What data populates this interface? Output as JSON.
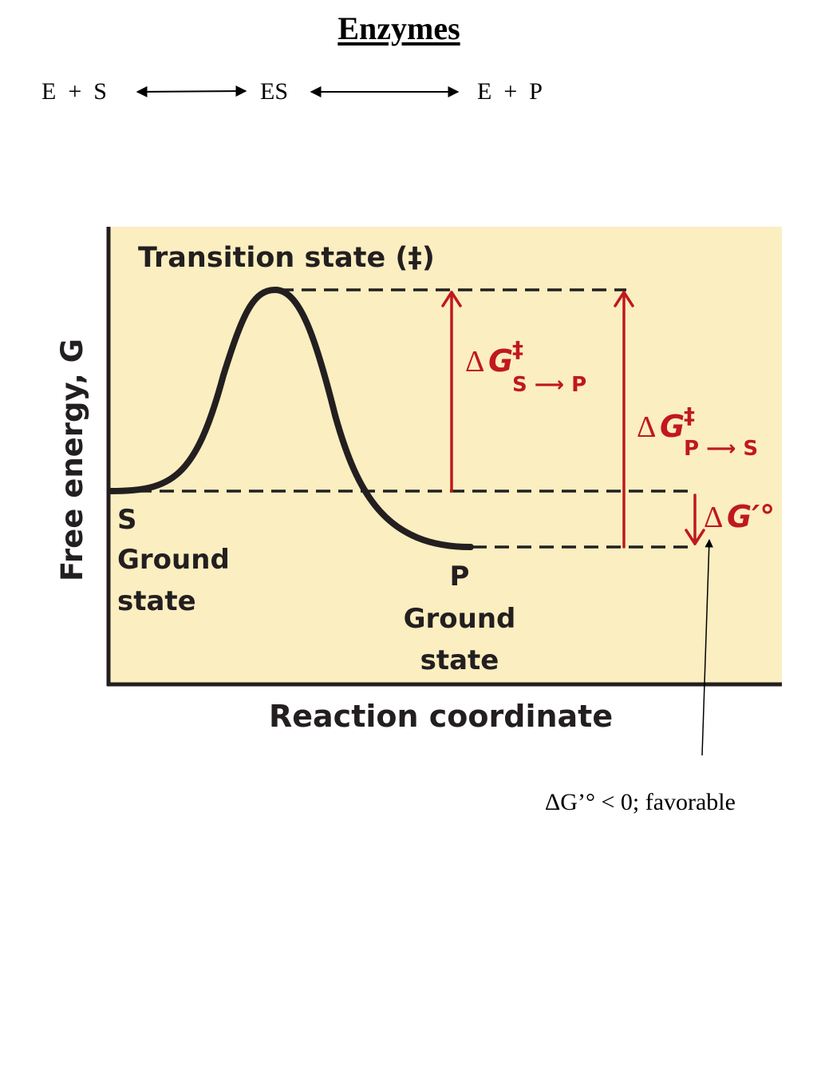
{
  "header": {
    "title": "Enzymes"
  },
  "reaction_equation": {
    "reactants": "E  +  S",
    "complex": "ES",
    "products": "E  +  P"
  },
  "energy_diagram": {
    "y_axis_label": "Free energy, G",
    "x_axis_label": "Reaction coordinate",
    "transition_state_label": "Transition state (‡)",
    "substrate": {
      "symbol": "S",
      "line1": "Ground",
      "line2": "state"
    },
    "product": {
      "symbol": "P",
      "line1": "Ground",
      "line2": "state"
    },
    "barrier_forward": {
      "delta": "Δ",
      "g": "G",
      "dagger": "‡",
      "subscript": "S ⟶ P"
    },
    "barrier_reverse": {
      "delta": "Δ",
      "g": "G",
      "dagger": "‡",
      "subscript": "P ⟶ S"
    },
    "standard_free_energy": {
      "delta": "Δ",
      "g": "G′°"
    },
    "colors": {
      "panel_background": "#fbeec0",
      "curve": "#231f20",
      "arrows": "#c0181e"
    }
  },
  "annotation": {
    "text": "ΔG’° < 0; favorable"
  }
}
